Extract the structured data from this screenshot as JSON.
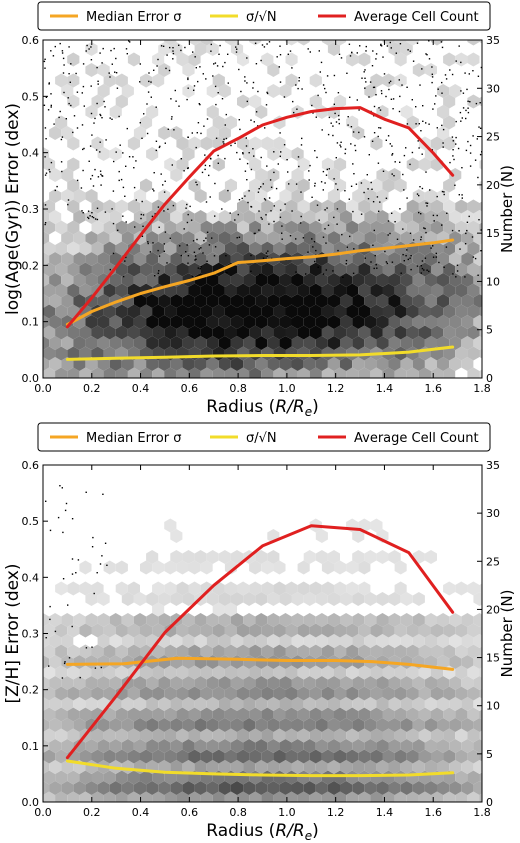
{
  "chart_data": [
    {
      "type": "line",
      "x_label": "Radius (R/Re)",
      "y_label": "log(Age(Gyr)) Error (dex)",
      "y2_label": "Number (N)",
      "xlim": [
        0.0,
        1.8
      ],
      "ylim": [
        0.0,
        0.6
      ],
      "y2lim": [
        0,
        35
      ],
      "x_ticks": [
        "0.0",
        "0.2",
        "0.4",
        "0.6",
        "0.8",
        "1.0",
        "1.2",
        "1.4",
        "1.6",
        "1.8"
      ],
      "y_ticks": [
        "0.0",
        "0.1",
        "0.2",
        "0.3",
        "0.4",
        "0.5",
        "0.6"
      ],
      "y2_ticks": [
        "0",
        "5",
        "10",
        "15",
        "20",
        "25",
        "30",
        "35"
      ],
      "legend": [
        "Median Error σ",
        "σ/√N",
        "Average Cell Count"
      ],
      "legend_position": "top",
      "background": "grayscale hexbin density of points",
      "series": [
        {
          "name": "Median Error σ",
          "axis": "left",
          "color": "#f5a623",
          "x": [
            0.1,
            0.2,
            0.3,
            0.4,
            0.5,
            0.6,
            0.7,
            0.8,
            0.9,
            1.0,
            1.1,
            1.2,
            1.3,
            1.4,
            1.5,
            1.6,
            1.68
          ],
          "values": [
            0.095,
            0.118,
            0.135,
            0.15,
            0.162,
            0.173,
            0.186,
            0.205,
            0.208,
            0.212,
            0.215,
            0.22,
            0.226,
            0.23,
            0.235,
            0.24,
            0.245
          ]
        },
        {
          "name": "σ/√N",
          "axis": "left",
          "color": "#f2dc2a",
          "x": [
            0.1,
            0.3,
            0.5,
            0.7,
            0.9,
            1.1,
            1.3,
            1.5,
            1.68
          ],
          "values": [
            0.033,
            0.035,
            0.037,
            0.039,
            0.04,
            0.04,
            0.041,
            0.046,
            0.055
          ]
        },
        {
          "name": "Average Cell Count",
          "axis": "right",
          "color": "#e02020",
          "x": [
            0.1,
            0.2,
            0.3,
            0.4,
            0.5,
            0.6,
            0.7,
            0.8,
            0.9,
            1.0,
            1.1,
            1.2,
            1.3,
            1.4,
            1.5,
            1.6,
            1.68
          ],
          "values": [
            5.3,
            8.3,
            11.5,
            14.8,
            18.0,
            20.8,
            23.5,
            24.8,
            26.2,
            27.0,
            27.6,
            27.9,
            28.0,
            26.8,
            25.9,
            23.3,
            21.0
          ]
        }
      ]
    },
    {
      "type": "line",
      "x_label": "Radius (R/Re)",
      "y_label": "[Z/H] Error (dex)",
      "y2_label": "Number (N)",
      "xlim": [
        0.0,
        1.8
      ],
      "ylim": [
        0.0,
        0.6
      ],
      "y2lim": [
        0,
        35
      ],
      "x_ticks": [
        "0.0",
        "0.2",
        "0.4",
        "0.6",
        "0.8",
        "1.0",
        "1.2",
        "1.4",
        "1.6",
        "1.8"
      ],
      "y_ticks": [
        "0.0",
        "0.1",
        "0.2",
        "0.3",
        "0.4",
        "0.5",
        "0.6"
      ],
      "y2_ticks": [
        "0",
        "5",
        "10",
        "15",
        "20",
        "25",
        "30",
        "35"
      ],
      "legend": [
        "Median Error σ",
        "σ/√N",
        "Average Cell Count"
      ],
      "legend_position": "top",
      "background": "grayscale hexbin density of points (banded)",
      "series": [
        {
          "name": "Median Error σ",
          "axis": "left",
          "color": "#f5a623",
          "x": [
            0.1,
            0.33,
            0.55,
            0.8,
            1.0,
            1.2,
            1.35,
            1.5,
            1.68
          ],
          "values": [
            0.245,
            0.246,
            0.256,
            0.254,
            0.252,
            0.252,
            0.25,
            0.245,
            0.236
          ]
        },
        {
          "name": "σ/√N",
          "axis": "left",
          "color": "#f2dc2a",
          "x": [
            0.1,
            0.3,
            0.5,
            0.7,
            0.9,
            1.1,
            1.3,
            1.5,
            1.68
          ],
          "values": [
            0.073,
            0.06,
            0.053,
            0.05,
            0.048,
            0.047,
            0.047,
            0.048,
            0.052
          ]
        },
        {
          "name": "Average Cell Count",
          "axis": "right",
          "color": "#e02020",
          "x": [
            0.1,
            0.3,
            0.5,
            0.7,
            0.9,
            1.1,
            1.3,
            1.5,
            1.68
          ],
          "values": [
            4.6,
            11.0,
            17.6,
            22.5,
            26.6,
            28.7,
            28.3,
            25.9,
            19.7
          ]
        }
      ]
    }
  ]
}
